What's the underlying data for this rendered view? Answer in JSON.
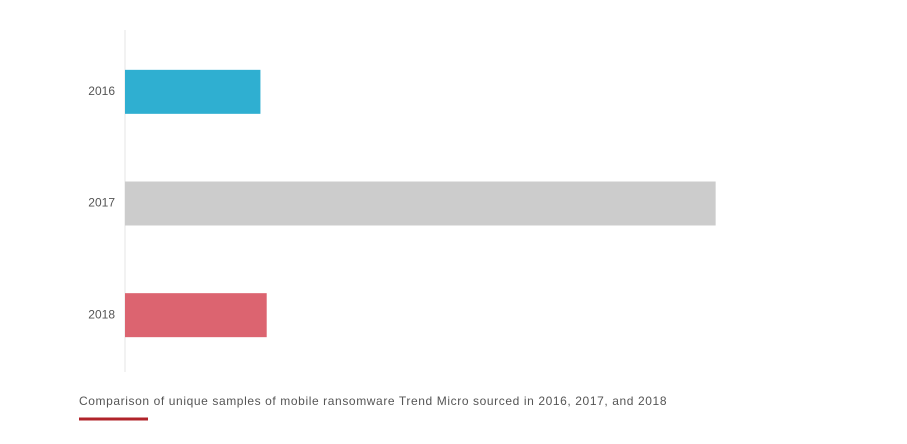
{
  "chart_data": {
    "type": "hbar",
    "caption": "Comparison of unique samples of mobile ransomware Trend Micro sourced in 2016, 2017, and 2018",
    "categories": [
      "2016",
      "2017",
      "2018"
    ],
    "values": [
      108000,
      471000,
      113000
    ],
    "colors": [
      "#2fafd1",
      "#cccccc",
      "#dc6470"
    ],
    "xlim": [
      0,
      500000
    ]
  }
}
